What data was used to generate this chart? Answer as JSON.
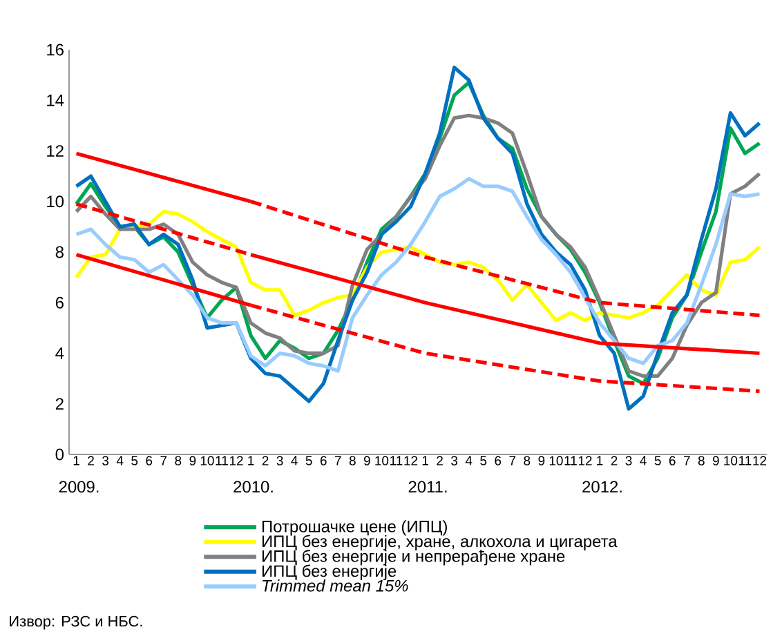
{
  "chart_data": {
    "type": "line",
    "categories": [
      "1",
      "2",
      "3",
      "4",
      "5",
      "6",
      "7",
      "8",
      "9",
      "10",
      "11",
      "12",
      "1",
      "2",
      "3",
      "4",
      "5",
      "6",
      "7",
      "8",
      "9",
      "10",
      "11",
      "12",
      "1",
      "2",
      "3",
      "4",
      "5",
      "6",
      "7",
      "8",
      "9",
      "10",
      "11",
      "12",
      "1",
      "2",
      "3",
      "4",
      "5",
      "6",
      "7",
      "8",
      "9",
      "10",
      "11",
      "12"
    ],
    "ylim": [
      0,
      16
    ],
    "yticks": [
      0,
      2,
      4,
      6,
      8,
      10,
      12,
      14,
      16
    ],
    "legend": "bottom",
    "series": [
      {
        "name": "Потрошачке цене (ИПЦ)",
        "color": "#00a651",
        "values": [
          9.9,
          10.7,
          9.8,
          9.0,
          9.0,
          8.3,
          8.6,
          8.0,
          6.7,
          5.4,
          6.1,
          6.6,
          4.7,
          3.8,
          4.5,
          4.2,
          3.8,
          4.0,
          4.9,
          6.1,
          7.6,
          8.9,
          9.4,
          10.2,
          11.1,
          12.5,
          14.2,
          14.7,
          13.4,
          12.5,
          12.1,
          10.5,
          9.4,
          8.7,
          8.1,
          7.2,
          6.0,
          4.5,
          3.1,
          2.8,
          3.8,
          5.4,
          6.3,
          8.0,
          9.6,
          12.9,
          11.9,
          12.3
        ]
      },
      {
        "name": "ИПЦ без енергије, хране, алкохола и цигарета",
        "color": "#ffff00",
        "values": [
          7.0,
          7.8,
          7.9,
          8.9,
          9.0,
          9.1,
          9.6,
          9.5,
          9.2,
          8.8,
          8.5,
          8.2,
          6.8,
          6.5,
          6.5,
          5.5,
          5.7,
          6.0,
          6.2,
          6.3,
          7.4,
          8.0,
          8.1,
          8.2,
          7.9,
          7.6,
          7.5,
          7.6,
          7.4,
          6.9,
          6.1,
          6.7,
          6.0,
          5.3,
          5.6,
          5.3,
          5.6,
          5.5,
          5.4,
          5.6,
          5.9,
          6.5,
          7.1,
          6.5,
          6.3,
          7.6,
          7.7,
          8.2
        ]
      },
      {
        "name": "ИПЦ без енергије и непрерађене хране",
        "color": "#808080",
        "values": [
          9.6,
          10.2,
          9.5,
          8.9,
          8.9,
          8.9,
          9.1,
          8.7,
          7.6,
          7.1,
          6.8,
          6.6,
          5.2,
          4.8,
          4.6,
          4.1,
          4.0,
          4.0,
          4.3,
          6.7,
          8.1,
          8.7,
          9.4,
          10.2,
          10.9,
          12.2,
          13.3,
          13.4,
          13.3,
          13.1,
          12.7,
          11.1,
          9.4,
          8.7,
          8.2,
          7.4,
          6.1,
          4.7,
          3.3,
          3.1,
          3.1,
          3.8,
          5.1,
          6.0,
          6.4,
          10.3,
          10.6,
          11.1
        ]
      },
      {
        "name": "ИПЦ без енергије",
        "color": "#0070c0",
        "values": [
          10.6,
          11.0,
          10.0,
          9.0,
          9.1,
          8.3,
          8.7,
          8.3,
          6.9,
          5.0,
          5.1,
          5.2,
          3.8,
          3.2,
          3.1,
          2.6,
          2.1,
          2.8,
          4.5,
          6.1,
          7.2,
          8.7,
          9.2,
          9.8,
          11.1,
          12.7,
          15.3,
          14.8,
          13.3,
          12.5,
          11.9,
          9.9,
          8.7,
          8.0,
          7.5,
          6.5,
          4.7,
          4.0,
          1.8,
          2.3,
          4.0,
          5.6,
          6.3,
          8.5,
          10.5,
          13.5,
          12.6,
          13.1
        ]
      },
      {
        "name": "*Trimmed mean 15%*",
        "color": "#99ccff",
        "values": [
          8.7,
          8.9,
          8.3,
          7.8,
          7.7,
          7.2,
          7.5,
          6.9,
          6.3,
          5.4,
          5.2,
          5.2,
          3.9,
          3.5,
          4.0,
          3.9,
          3.6,
          3.5,
          3.3,
          5.4,
          6.3,
          7.1,
          7.6,
          8.3,
          9.2,
          10.2,
          10.5,
          10.9,
          10.6,
          10.6,
          10.4,
          9.4,
          8.5,
          7.9,
          7.2,
          6.2,
          5.2,
          4.5,
          3.8,
          3.6,
          4.3,
          4.5,
          5.2,
          6.7,
          8.3,
          10.3,
          10.2,
          10.3
        ]
      },
      {
        "color": "#ff0000",
        "line_style": "solid",
        "values": [
          11.9,
          null,
          null,
          null,
          null,
          null,
          null,
          null,
          null,
          null,
          null,
          null,
          10.0,
          null,
          null,
          null,
          null,
          null,
          null,
          null,
          null,
          null,
          null,
          null,
          null,
          null,
          null,
          null,
          null,
          null,
          null,
          null,
          null,
          null,
          null,
          null,
          null,
          null,
          null,
          null,
          null,
          null,
          null,
          null,
          null,
          null,
          null,
          null
        ]
      },
      {
        "color": "#ff0000",
        "line_style": "dashed",
        "values": [
          null,
          null,
          null,
          null,
          null,
          null,
          null,
          null,
          null,
          null,
          null,
          null,
          10.0,
          null,
          null,
          null,
          null,
          null,
          null,
          null,
          null,
          null,
          null,
          null,
          7.8,
          null,
          null,
          null,
          null,
          null,
          null,
          null,
          null,
          null,
          null,
          null,
          6.0,
          null,
          null,
          null,
          null,
          null,
          null,
          null,
          null,
          null,
          null,
          5.5
        ]
      },
      {
        "color": "#ff0000",
        "line_style": "dashed",
        "values": [
          9.9,
          null,
          null,
          null,
          null,
          null,
          null,
          null,
          null,
          null,
          null,
          null,
          7.9,
          null,
          null,
          null,
          null,
          null,
          null,
          null,
          null,
          null,
          null,
          null,
          null,
          null,
          null,
          null,
          null,
          null,
          null,
          null,
          null,
          null,
          null,
          null,
          null,
          null,
          null,
          null,
          null,
          null,
          null,
          null,
          null,
          null,
          null,
          null
        ]
      },
      {
        "color": "#ff0000",
        "line_style": "solid",
        "values": [
          null,
          null,
          null,
          null,
          null,
          null,
          null,
          null,
          null,
          null,
          null,
          null,
          7.9,
          null,
          null,
          null,
          null,
          null,
          null,
          null,
          null,
          null,
          null,
          null,
          6.0,
          null,
          null,
          null,
          null,
          null,
          null,
          null,
          null,
          null,
          null,
          null,
          4.4,
          null,
          null,
          null,
          null,
          null,
          null,
          null,
          null,
          null,
          null,
          4.0
        ]
      },
      {
        "color": "#ff0000",
        "line_style": "solid",
        "values": [
          7.9,
          null,
          null,
          null,
          null,
          null,
          null,
          null,
          null,
          null,
          null,
          null,
          5.9,
          null,
          null,
          null,
          null,
          null,
          null,
          null,
          null,
          null,
          null,
          null,
          null,
          null,
          null,
          null,
          null,
          null,
          null,
          null,
          null,
          null,
          null,
          null,
          null,
          null,
          null,
          null,
          null,
          null,
          null,
          null,
          null,
          null,
          null,
          null
        ]
      },
      {
        "color": "#ff0000",
        "line_style": "dashed",
        "values": [
          null,
          null,
          null,
          null,
          null,
          null,
          null,
          null,
          null,
          null,
          null,
          null,
          5.9,
          null,
          null,
          null,
          null,
          null,
          null,
          null,
          null,
          null,
          null,
          null,
          4.0,
          null,
          null,
          null,
          null,
          null,
          null,
          null,
          null,
          null,
          null,
          null,
          2.9,
          null,
          null,
          null,
          null,
          null,
          null,
          null,
          null,
          null,
          null,
          2.5
        ]
      }
    ],
    "annotations": [
      "2009.",
      "2010.",
      "2011.",
      "2012.",
      "Извор: РЗС и НБС."
    ]
  }
}
